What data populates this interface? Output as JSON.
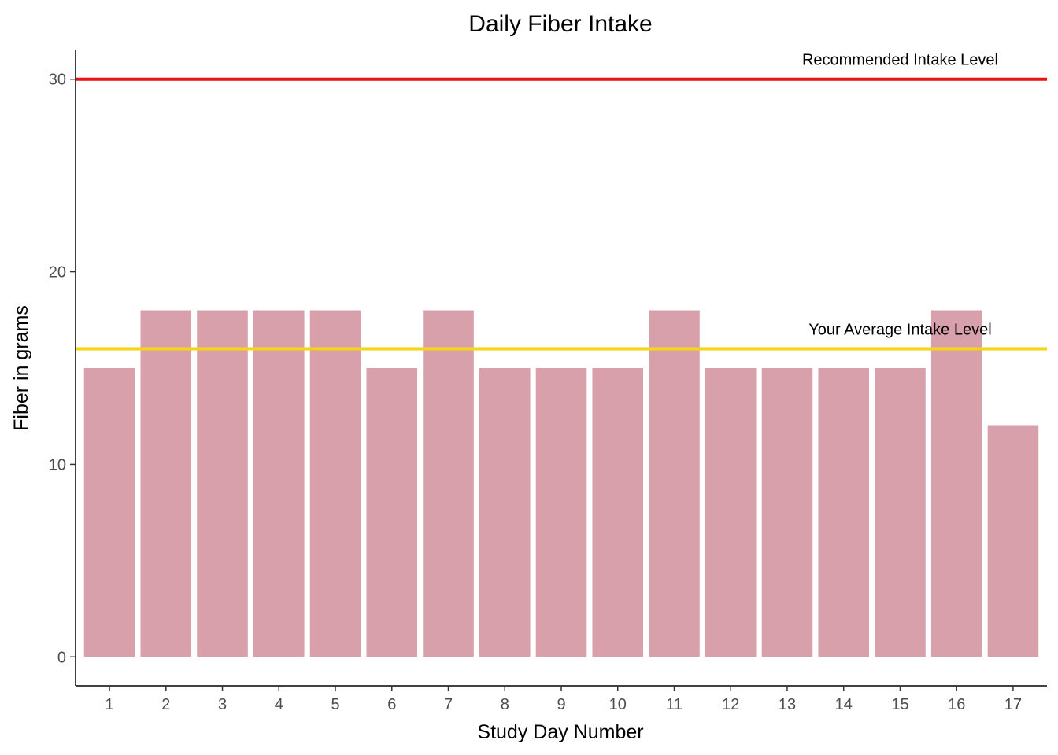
{
  "chart_data": {
    "type": "bar",
    "title": "Daily Fiber Intake",
    "xlabel": "Study Day Number",
    "ylabel": "Fiber in grams",
    "categories": [
      "1",
      "2",
      "3",
      "4",
      "5",
      "6",
      "7",
      "8",
      "9",
      "10",
      "11",
      "12",
      "13",
      "14",
      "15",
      "16",
      "17"
    ],
    "values": [
      15,
      18,
      18,
      18,
      18,
      15,
      18,
      15,
      15,
      15,
      18,
      15,
      15,
      15,
      15,
      18,
      12
    ],
    "ylim": [
      -1.5,
      31.5
    ],
    "yticks": [
      0,
      10,
      20,
      30
    ],
    "grid": false,
    "bar_color": "#d8a0ab",
    "reference_lines": [
      {
        "label": "Recommended Intake Level",
        "value": 30,
        "color": "#ee1111"
      },
      {
        "label": "Your Average Intake Level",
        "value": 16,
        "color": "#f5d60f"
      }
    ]
  }
}
